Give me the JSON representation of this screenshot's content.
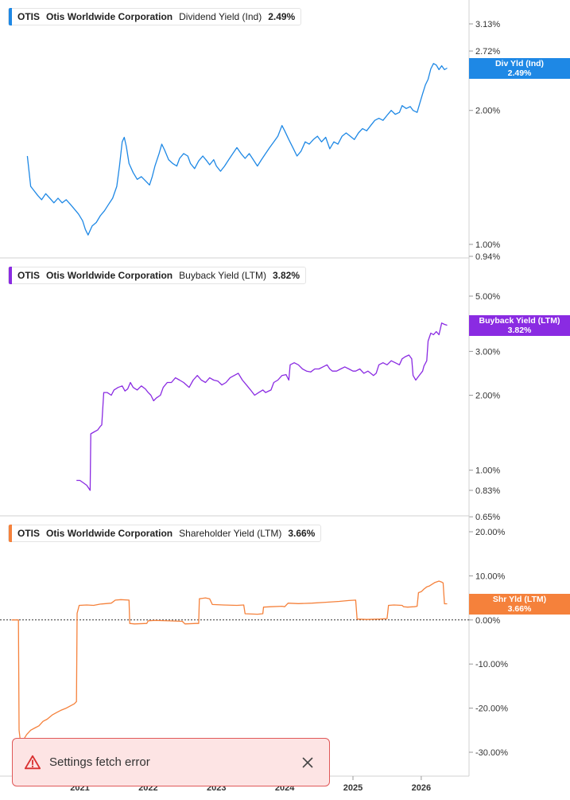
{
  "chart_data": [
    {
      "type": "line",
      "title": "",
      "legend": {
        "ticker": "OTIS",
        "company": "Otis Worldwide Corporation",
        "metric": "Dividend Yield (Ind)",
        "value": "2.49%"
      },
      "tag": {
        "line1": "Div Yld (Ind)",
        "line2": "2.49%"
      },
      "color": "#1e88e5",
      "scale": "log",
      "y_ticks": [
        {
          "v": 3.13,
          "label": "3.13%"
        },
        {
          "v": 2.72,
          "label": "2.72%"
        },
        {
          "v": 2.0,
          "label": "2.00%"
        },
        {
          "v": 1.0,
          "label": "1.00%"
        },
        {
          "v": 0.94,
          "label": "0.94%"
        }
      ],
      "x_points": [
        [
          2020.23,
          1.58
        ],
        [
          2020.28,
          1.35
        ],
        [
          2020.33,
          1.32
        ],
        [
          2020.38,
          1.29
        ],
        [
          2020.44,
          1.26
        ],
        [
          2020.5,
          1.3
        ],
        [
          2020.56,
          1.27
        ],
        [
          2020.62,
          1.24
        ],
        [
          2020.68,
          1.27
        ],
        [
          2020.74,
          1.24
        ],
        [
          2020.8,
          1.26
        ],
        [
          2020.86,
          1.23
        ],
        [
          2020.92,
          1.2
        ],
        [
          2020.98,
          1.17
        ],
        [
          2021.04,
          1.13
        ],
        [
          2021.08,
          1.08
        ],
        [
          2021.12,
          1.05
        ],
        [
          2021.18,
          1.1
        ],
        [
          2021.24,
          1.12
        ],
        [
          2021.3,
          1.16
        ],
        [
          2021.36,
          1.19
        ],
        [
          2021.42,
          1.23
        ],
        [
          2021.48,
          1.27
        ],
        [
          2021.54,
          1.35
        ],
        [
          2021.58,
          1.5
        ],
        [
          2021.62,
          1.7
        ],
        [
          2021.65,
          1.74
        ],
        [
          2021.68,
          1.66
        ],
        [
          2021.72,
          1.52
        ],
        [
          2021.78,
          1.45
        ],
        [
          2021.84,
          1.4
        ],
        [
          2021.9,
          1.42
        ],
        [
          2021.96,
          1.39
        ],
        [
          2022.02,
          1.36
        ],
        [
          2022.06,
          1.42
        ],
        [
          2022.1,
          1.5
        ],
        [
          2022.16,
          1.6
        ],
        [
          2022.2,
          1.68
        ],
        [
          2022.24,
          1.63
        ],
        [
          2022.3,
          1.55
        ],
        [
          2022.36,
          1.52
        ],
        [
          2022.42,
          1.5
        ],
        [
          2022.46,
          1.56
        ],
        [
          2022.52,
          1.6
        ],
        [
          2022.58,
          1.58
        ],
        [
          2022.62,
          1.52
        ],
        [
          2022.68,
          1.48
        ],
        [
          2022.74,
          1.54
        ],
        [
          2022.8,
          1.58
        ],
        [
          2022.86,
          1.54
        ],
        [
          2022.9,
          1.51
        ],
        [
          2022.96,
          1.55
        ],
        [
          2023.0,
          1.5
        ],
        [
          2023.06,
          1.46
        ],
        [
          2023.12,
          1.5
        ],
        [
          2023.18,
          1.55
        ],
        [
          2023.24,
          1.6
        ],
        [
          2023.3,
          1.65
        ],
        [
          2023.36,
          1.6
        ],
        [
          2023.42,
          1.56
        ],
        [
          2023.48,
          1.6
        ],
        [
          2023.54,
          1.55
        ],
        [
          2023.6,
          1.5
        ],
        [
          2023.66,
          1.55
        ],
        [
          2023.72,
          1.6
        ],
        [
          2023.78,
          1.65
        ],
        [
          2023.84,
          1.7
        ],
        [
          2023.9,
          1.75
        ],
        [
          2023.96,
          1.85
        ],
        [
          2024.0,
          1.8
        ],
        [
          2024.06,
          1.72
        ],
        [
          2024.12,
          1.65
        ],
        [
          2024.18,
          1.58
        ],
        [
          2024.24,
          1.62
        ],
        [
          2024.3,
          1.7
        ],
        [
          2024.36,
          1.68
        ],
        [
          2024.42,
          1.72
        ],
        [
          2024.48,
          1.75
        ],
        [
          2024.54,
          1.7
        ],
        [
          2024.6,
          1.74
        ],
        [
          2024.66,
          1.64
        ],
        [
          2024.72,
          1.7
        ],
        [
          2024.78,
          1.68
        ],
        [
          2024.84,
          1.75
        ],
        [
          2024.9,
          1.78
        ],
        [
          2024.96,
          1.75
        ],
        [
          2025.02,
          1.72
        ],
        [
          2025.08,
          1.78
        ],
        [
          2025.14,
          1.82
        ],
        [
          2025.2,
          1.8
        ],
        [
          2025.26,
          1.85
        ],
        [
          2025.32,
          1.9
        ],
        [
          2025.38,
          1.92
        ],
        [
          2025.44,
          1.9
        ],
        [
          2025.5,
          1.95
        ],
        [
          2025.56,
          2.0
        ],
        [
          2025.62,
          1.96
        ],
        [
          2025.68,
          1.98
        ],
        [
          2025.72,
          2.05
        ],
        [
          2025.78,
          2.02
        ],
        [
          2025.84,
          2.04
        ],
        [
          2025.88,
          2.0
        ],
        [
          2025.94,
          1.98
        ],
        [
          2025.98,
          2.08
        ],
        [
          2026.02,
          2.18
        ],
        [
          2026.06,
          2.28
        ],
        [
          2026.1,
          2.35
        ],
        [
          2026.14,
          2.48
        ],
        [
          2026.18,
          2.55
        ],
        [
          2026.22,
          2.53
        ],
        [
          2026.26,
          2.47
        ],
        [
          2026.3,
          2.52
        ],
        [
          2026.34,
          2.47
        ],
        [
          2026.38,
          2.49
        ]
      ]
    },
    {
      "type": "line",
      "title": "",
      "legend": {
        "ticker": "OTIS",
        "company": "Otis Worldwide Corporation",
        "metric": "Buyback Yield (LTM)",
        "value": "3.82%"
      },
      "tag": {
        "line1": "Buyback Yield (LTM)",
        "line2": "3.82%"
      },
      "color": "#8a2be2",
      "scale": "log",
      "y_ticks": [
        {
          "v": 5.0,
          "label": "5.00%"
        },
        {
          "v": 3.0,
          "label": "3.00%"
        },
        {
          "v": 2.0,
          "label": "2.00%"
        },
        {
          "v": 1.0,
          "label": "1.00%"
        },
        {
          "v": 0.83,
          "label": "0.83%"
        },
        {
          "v": 0.65,
          "label": "0.65%"
        }
      ],
      "x_points": [
        [
          2020.95,
          0.91
        ],
        [
          2021.0,
          0.91
        ],
        [
          2021.05,
          0.89
        ],
        [
          2021.1,
          0.87
        ],
        [
          2021.15,
          0.83
        ],
        [
          2021.16,
          1.4
        ],
        [
          2021.2,
          1.42
        ],
        [
          2021.26,
          1.45
        ],
        [
          2021.3,
          1.5
        ],
        [
          2021.32,
          1.52
        ],
        [
          2021.35,
          2.05
        ],
        [
          2021.4,
          2.05
        ],
        [
          2021.46,
          2.0
        ],
        [
          2021.5,
          2.1
        ],
        [
          2021.56,
          2.15
        ],
        [
          2021.62,
          2.18
        ],
        [
          2021.66,
          2.08
        ],
        [
          2021.7,
          2.12
        ],
        [
          2021.74,
          2.25
        ],
        [
          2021.78,
          2.15
        ],
        [
          2021.84,
          2.1
        ],
        [
          2021.9,
          2.18
        ],
        [
          2021.96,
          2.12
        ],
        [
          2022.0,
          2.05
        ],
        [
          2022.04,
          2.0
        ],
        [
          2022.08,
          1.9
        ],
        [
          2022.12,
          1.95
        ],
        [
          2022.18,
          2.0
        ],
        [
          2022.22,
          2.15
        ],
        [
          2022.28,
          2.25
        ],
        [
          2022.34,
          2.25
        ],
        [
          2022.4,
          2.35
        ],
        [
          2022.46,
          2.3
        ],
        [
          2022.52,
          2.25
        ],
        [
          2022.56,
          2.2
        ],
        [
          2022.6,
          2.15
        ],
        [
          2022.66,
          2.3
        ],
        [
          2022.72,
          2.4
        ],
        [
          2022.78,
          2.3
        ],
        [
          2022.84,
          2.25
        ],
        [
          2022.9,
          2.35
        ],
        [
          2022.96,
          2.3
        ],
        [
          2023.02,
          2.28
        ],
        [
          2023.08,
          2.2
        ],
        [
          2023.14,
          2.25
        ],
        [
          2023.2,
          2.35
        ],
        [
          2023.26,
          2.4
        ],
        [
          2023.32,
          2.45
        ],
        [
          2023.38,
          2.3
        ],
        [
          2023.44,
          2.2
        ],
        [
          2023.5,
          2.1
        ],
        [
          2023.56,
          2.0
        ],
        [
          2023.62,
          2.05
        ],
        [
          2023.68,
          2.1
        ],
        [
          2023.72,
          2.05
        ],
        [
          2023.8,
          2.1
        ],
        [
          2023.84,
          2.25
        ],
        [
          2023.9,
          2.3
        ],
        [
          2023.96,
          2.4
        ],
        [
          2024.02,
          2.42
        ],
        [
          2024.06,
          2.3
        ],
        [
          2024.08,
          2.65
        ],
        [
          2024.14,
          2.7
        ],
        [
          2024.2,
          2.65
        ],
        [
          2024.26,
          2.55
        ],
        [
          2024.32,
          2.5
        ],
        [
          2024.38,
          2.48
        ],
        [
          2024.44,
          2.55
        ],
        [
          2024.5,
          2.55
        ],
        [
          2024.56,
          2.6
        ],
        [
          2024.62,
          2.65
        ],
        [
          2024.66,
          2.55
        ],
        [
          2024.7,
          2.5
        ],
        [
          2024.76,
          2.5
        ],
        [
          2024.82,
          2.55
        ],
        [
          2024.88,
          2.6
        ],
        [
          2024.94,
          2.55
        ],
        [
          2025.0,
          2.5
        ],
        [
          2025.04,
          2.5
        ],
        [
          2025.1,
          2.55
        ],
        [
          2025.16,
          2.45
        ],
        [
          2025.22,
          2.5
        ],
        [
          2025.26,
          2.45
        ],
        [
          2025.3,
          2.4
        ],
        [
          2025.34,
          2.45
        ],
        [
          2025.38,
          2.65
        ],
        [
          2025.44,
          2.7
        ],
        [
          2025.5,
          2.65
        ],
        [
          2025.56,
          2.75
        ],
        [
          2025.62,
          2.7
        ],
        [
          2025.68,
          2.65
        ],
        [
          2025.72,
          2.8
        ],
        [
          2025.76,
          2.85
        ],
        [
          2025.82,
          2.9
        ],
        [
          2025.86,
          2.8
        ],
        [
          2025.88,
          2.4
        ],
        [
          2025.92,
          2.3
        ],
        [
          2025.96,
          2.38
        ],
        [
          2026.02,
          2.5
        ],
        [
          2026.04,
          2.62
        ],
        [
          2026.08,
          2.75
        ],
        [
          2026.1,
          3.3
        ],
        [
          2026.14,
          3.55
        ],
        [
          2026.18,
          3.5
        ],
        [
          2026.22,
          3.6
        ],
        [
          2026.26,
          3.5
        ],
        [
          2026.3,
          3.9
        ],
        [
          2026.34,
          3.85
        ],
        [
          2026.38,
          3.82
        ]
      ]
    },
    {
      "type": "line",
      "title": "",
      "legend": {
        "ticker": "OTIS",
        "company": "Otis Worldwide Corporation",
        "metric": "Shareholder Yield (LTM)",
        "value": "3.66%"
      },
      "tag": {
        "line1": "Shr Yld (LTM)",
        "line2": "3.66%"
      },
      "color": "#f5813b",
      "scale": "linear",
      "baseline": 0,
      "y_ticks": [
        {
          "v": 20,
          "label": "20.00%"
        },
        {
          "v": 10,
          "label": "10.00%"
        },
        {
          "v": 0,
          "label": "0.00%"
        },
        {
          "v": -10,
          "label": "-10.00%"
        },
        {
          "v": -20,
          "label": "-20.00%"
        },
        {
          "v": -30,
          "label": "-30.00%"
        }
      ],
      "x_points": [
        [
          2020.0,
          0.0
        ],
        [
          2020.1,
          0.0
        ],
        [
          2020.11,
          -25.0
        ],
        [
          2020.14,
          -29.0
        ],
        [
          2020.18,
          -27.0
        ],
        [
          2020.22,
          -26.0
        ],
        [
          2020.28,
          -25.0
        ],
        [
          2020.34,
          -24.5
        ],
        [
          2020.4,
          -24.0
        ],
        [
          2020.46,
          -23.0
        ],
        [
          2020.52,
          -22.5
        ],
        [
          2020.6,
          -21.5
        ],
        [
          2020.66,
          -21.0
        ],
        [
          2020.72,
          -20.5
        ],
        [
          2020.8,
          -20.0
        ],
        [
          2020.86,
          -19.5
        ],
        [
          2020.92,
          -19.0
        ],
        [
          2020.95,
          -18.5
        ],
        [
          2020.96,
          1.5
        ],
        [
          2020.99,
          3.3
        ],
        [
          2021.1,
          3.4
        ],
        [
          2021.2,
          3.3
        ],
        [
          2021.3,
          3.6
        ],
        [
          2021.38,
          3.7
        ],
        [
          2021.46,
          3.8
        ],
        [
          2021.52,
          4.5
        ],
        [
          2021.6,
          4.6
        ],
        [
          2021.72,
          4.5
        ],
        [
          2021.73,
          -0.8
        ],
        [
          2021.8,
          -0.9
        ],
        [
          2021.98,
          -0.8
        ],
        [
          2022.0,
          -0.2
        ],
        [
          2022.1,
          -0.1
        ],
        [
          2022.3,
          -0.2
        ],
        [
          2022.5,
          -0.3
        ],
        [
          2022.54,
          -0.9
        ],
        [
          2022.7,
          -0.8
        ],
        [
          2022.74,
          -0.8
        ],
        [
          2022.75,
          4.8
        ],
        [
          2022.84,
          5.0
        ],
        [
          2022.9,
          4.8
        ],
        [
          2022.94,
          3.5
        ],
        [
          2023.1,
          3.4
        ],
        [
          2023.3,
          3.3
        ],
        [
          2023.4,
          3.4
        ],
        [
          2023.42,
          1.4
        ],
        [
          2023.6,
          1.3
        ],
        [
          2023.68,
          1.4
        ],
        [
          2023.69,
          2.9
        ],
        [
          2023.8,
          3.0
        ],
        [
          2023.96,
          3.1
        ],
        [
          2024.0,
          3.0
        ],
        [
          2024.05,
          3.8
        ],
        [
          2024.2,
          3.7
        ],
        [
          2024.4,
          3.8
        ],
        [
          2024.6,
          4.0
        ],
        [
          2024.8,
          4.2
        ],
        [
          2024.94,
          4.4
        ],
        [
          2025.04,
          4.5
        ],
        [
          2025.06,
          0.2
        ],
        [
          2025.2,
          0.1
        ],
        [
          2025.4,
          0.2
        ],
        [
          2025.5,
          0.3
        ],
        [
          2025.52,
          3.3
        ],
        [
          2025.6,
          3.4
        ],
        [
          2025.72,
          3.3
        ],
        [
          2025.74,
          3.0
        ],
        [
          2025.8,
          2.9
        ],
        [
          2025.9,
          3.0
        ],
        [
          2025.94,
          3.1
        ],
        [
          2025.96,
          6.2
        ],
        [
          2026.0,
          6.4
        ],
        [
          2026.04,
          7.0
        ],
        [
          2026.08,
          7.5
        ],
        [
          2026.12,
          7.7
        ],
        [
          2026.2,
          8.5
        ],
        [
          2026.26,
          8.8
        ],
        [
          2026.3,
          8.6
        ],
        [
          2026.32,
          8.4
        ],
        [
          2026.34,
          3.66
        ],
        [
          2026.38,
          3.66
        ]
      ]
    }
  ],
  "x_axis": {
    "ticks": [
      {
        "v": 2021,
        "label": "2021"
      },
      {
        "v": 2022,
        "label": "2022"
      },
      {
        "v": 2023,
        "label": "2023"
      },
      {
        "v": 2024,
        "label": "2024"
      },
      {
        "v": 2025,
        "label": "2025"
      },
      {
        "v": 2026,
        "label": "2026"
      }
    ],
    "range": [
      2019.83,
      2026.7
    ]
  },
  "toast": {
    "message": "Settings fetch error",
    "close_label": "Close"
  },
  "colors": {
    "grid": "#d0d0d0",
    "error_red": "#d93030",
    "baseline": "#333333"
  }
}
